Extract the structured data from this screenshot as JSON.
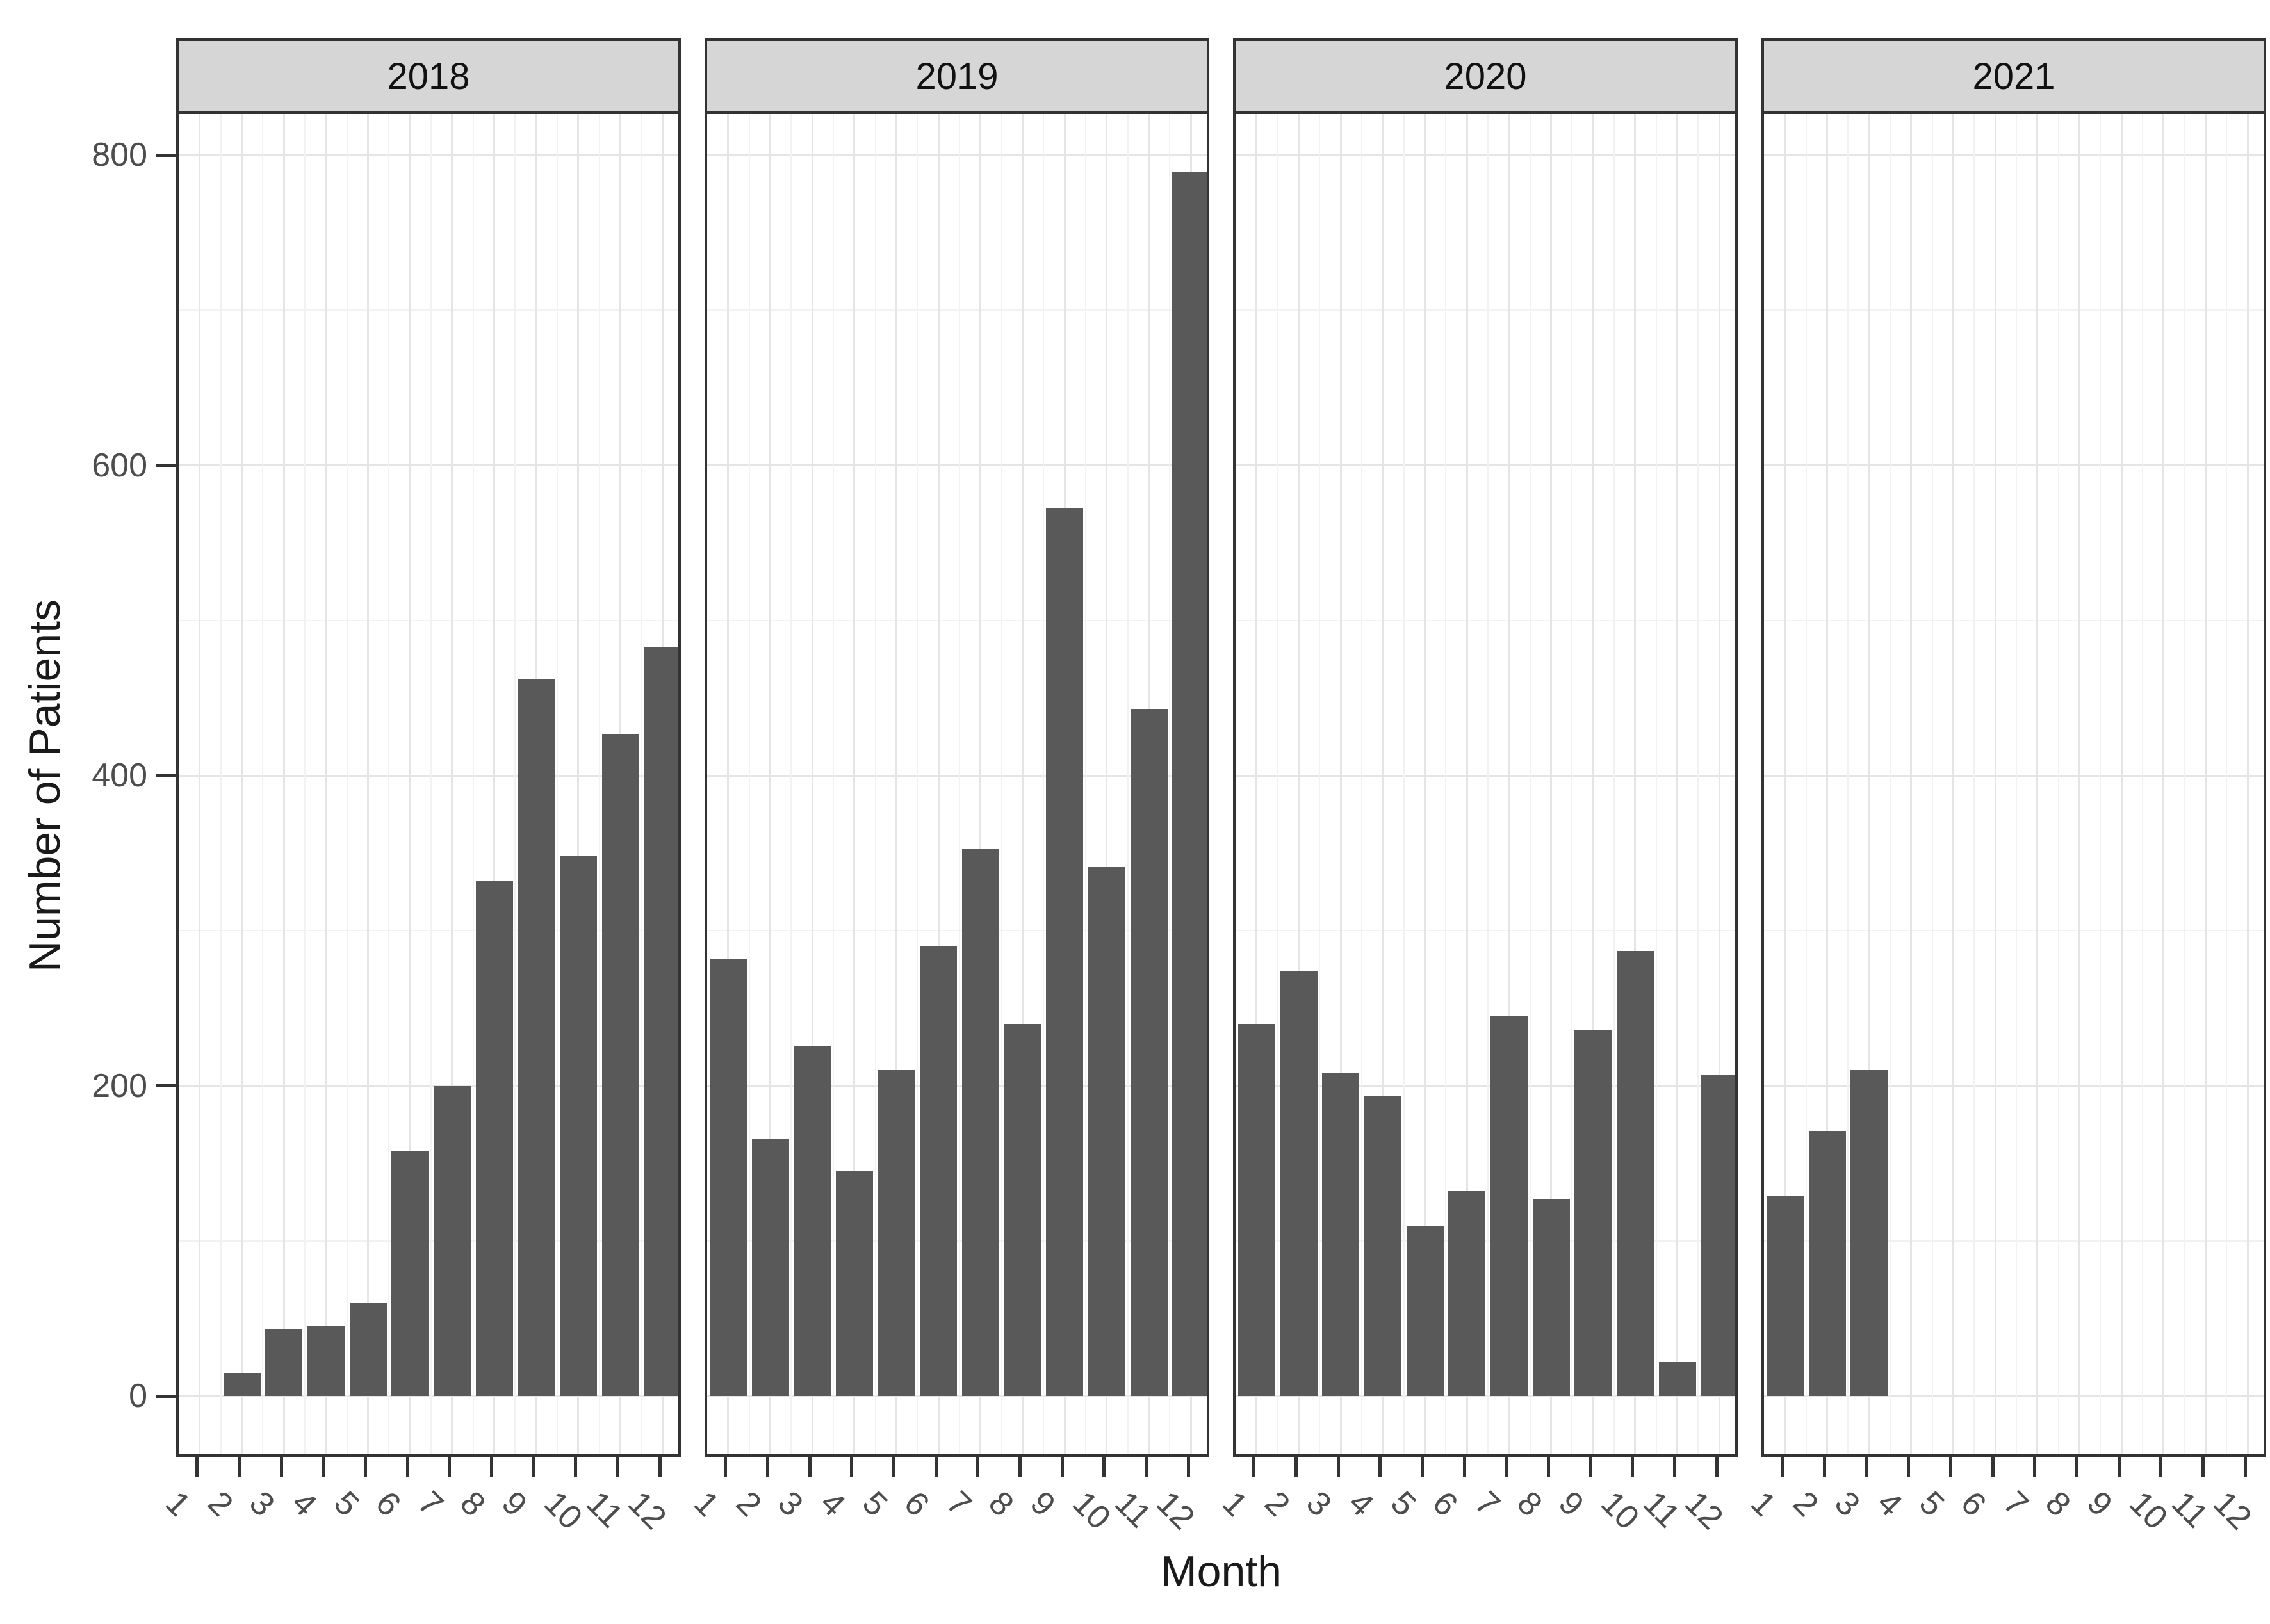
{
  "chart_data": {
    "type": "bar",
    "title": "",
    "xlabel": "Month",
    "ylabel": "Number of Patients",
    "categories": [
      "1",
      "2",
      "3",
      "4",
      "5",
      "6",
      "7",
      "8",
      "9",
      "10",
      "11",
      "12"
    ],
    "facets": [
      "2018",
      "2019",
      "2020",
      "2021"
    ],
    "series": [
      {
        "name": "2018",
        "values": [
          null,
          15,
          43,
          45,
          60,
          158,
          200,
          332,
          462,
          348,
          427,
          483
        ]
      },
      {
        "name": "2019",
        "values": [
          282,
          166,
          226,
          145,
          210,
          290,
          353,
          240,
          572,
          341,
          443,
          789
        ]
      },
      {
        "name": "2020",
        "values": [
          240,
          274,
          208,
          193,
          110,
          132,
          245,
          127,
          236,
          287,
          22,
          207
        ]
      },
      {
        "name": "2021",
        "values": [
          129,
          171,
          210,
          null,
          null,
          null,
          null,
          null,
          null,
          null,
          null,
          null
        ]
      }
    ],
    "yticks": [
      0,
      200,
      400,
      600,
      800
    ],
    "yticks_minor": [
      100,
      300,
      500,
      700
    ],
    "ylim": [
      0,
      800
    ],
    "grid": true,
    "legend": false,
    "colors": {
      "bar_fill": "#595959",
      "strip_background": "#d6d6d6",
      "panel_border": "#333333",
      "grid_major": "#e5e5e5",
      "grid_minor": "#f2f2f2",
      "tick_text": "#4d4d4d",
      "title_text": "#1a1a1a"
    }
  }
}
